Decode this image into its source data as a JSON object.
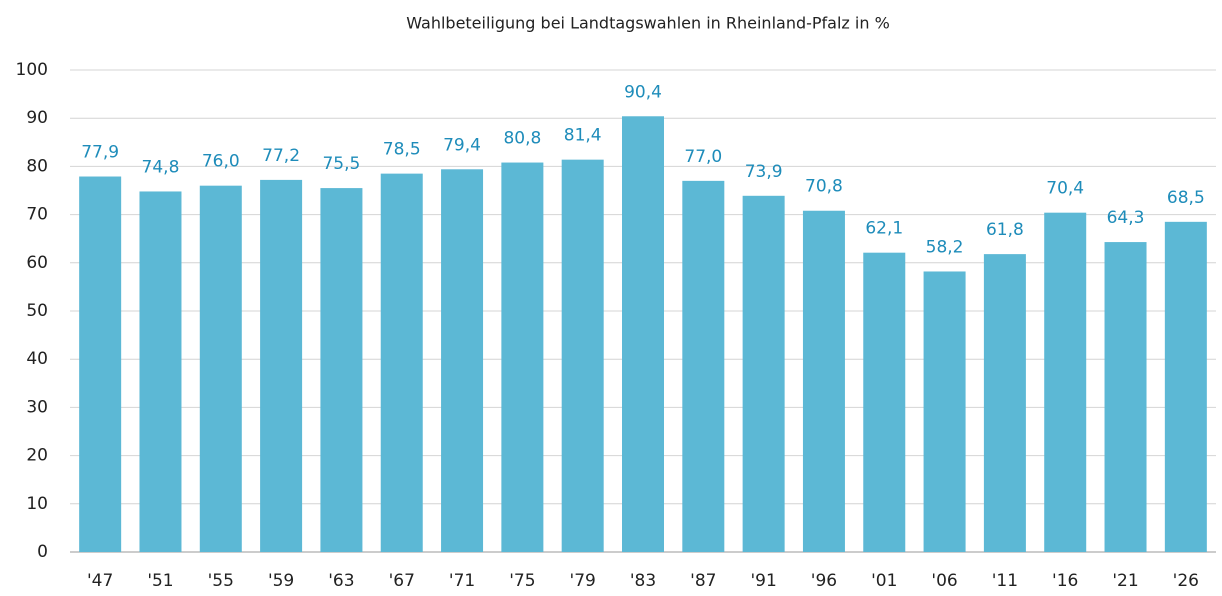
{
  "chart_data": {
    "type": "bar",
    "title": "Wahlbeteiligung bei Landtagswahlen in Rheinland-Pfalz in %",
    "categories": [
      "'47",
      "'51",
      "'55",
      "'59",
      "'63",
      "'67",
      "'71",
      "'75",
      "'79",
      "'83",
      "'87",
      "'91",
      "'96",
      "'01",
      "'06",
      "'11",
      "'16",
      "'21",
      "'26"
    ],
    "values": [
      77.9,
      74.8,
      76.0,
      77.2,
      75.5,
      78.5,
      79.4,
      80.8,
      81.4,
      90.4,
      77.0,
      73.9,
      70.8,
      62.1,
      58.2,
      61.8,
      70.4,
      64.3,
      68.5
    ],
    "value_labels": [
      "77,9",
      "74,8",
      "76,0",
      "77,2",
      "75,5",
      "78,5",
      "79,4",
      "80,8",
      "81,4",
      "90,4",
      "77,0",
      "73,9",
      "70,8",
      "62,1",
      "58,2",
      "61,8",
      "70,4",
      "64,3",
      "68,5"
    ],
    "color": "#5cb8d5",
    "ylim": [
      0,
      100
    ],
    "yticks": [
      0,
      10,
      20,
      30,
      40,
      50,
      60,
      70,
      80,
      90,
      100
    ],
    "grid": true
  }
}
